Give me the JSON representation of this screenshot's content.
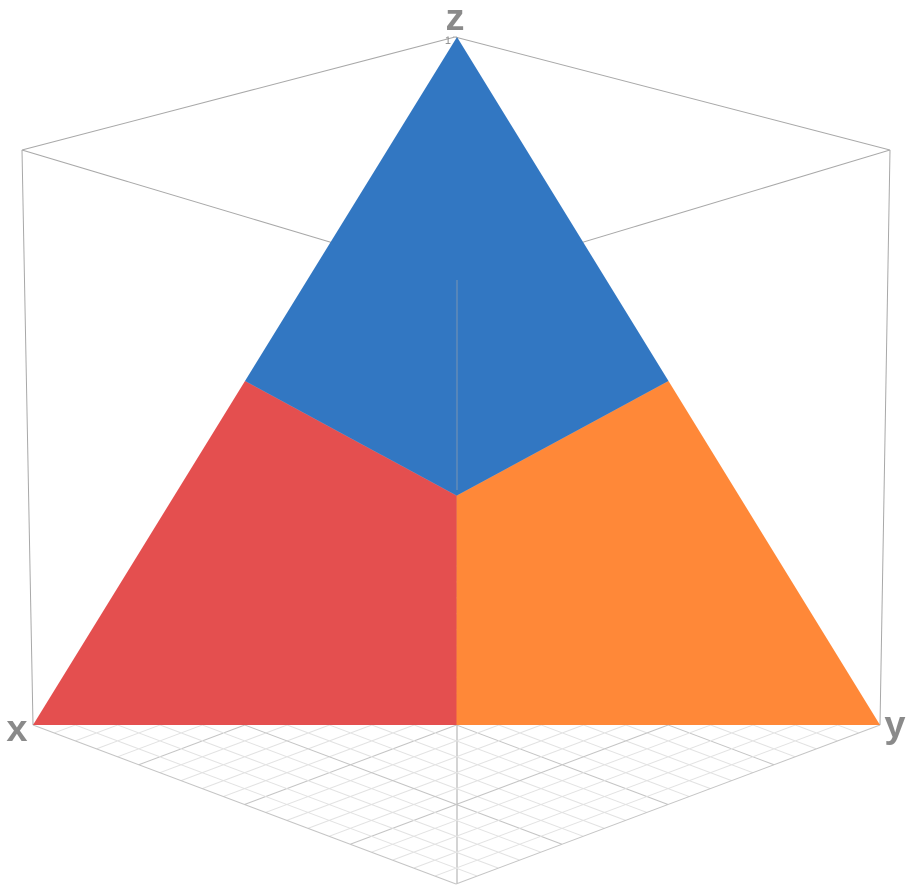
{
  "chart_data": {
    "type": "ternary-surface3d",
    "axis_labels": {
      "x": "x",
      "y": "y",
      "z": "z"
    },
    "zlim": [
      0,
      1
    ],
    "zticks": [
      1
    ],
    "region_colors": {
      "x": "#e44f4f",
      "y": "#ff8838",
      "z": "#3277c2"
    },
    "grid": true
  }
}
